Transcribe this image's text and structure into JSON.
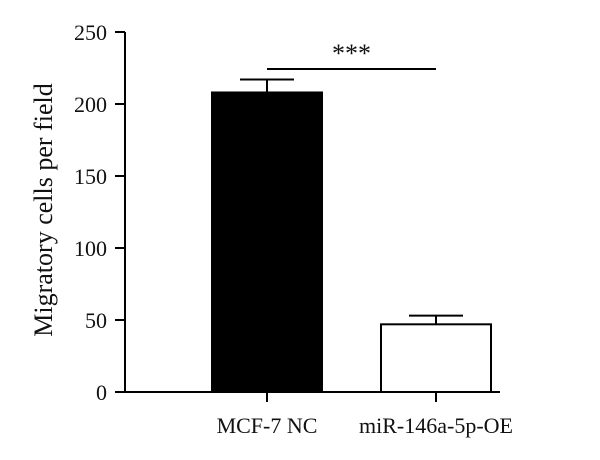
{
  "chart_data": {
    "type": "bar",
    "ylabel": "Migratory cells per field",
    "ylim": [
      0,
      250
    ],
    "yticks": [
      0,
      50,
      100,
      150,
      200,
      250
    ],
    "categories": [
      "MCF-7 NC",
      "miR-146a-5p-OE"
    ],
    "values": [
      208,
      47
    ],
    "errors": [
      9,
      6
    ],
    "bar_fill": [
      "#000000",
      "#ffffff"
    ],
    "bar_stroke": "#000000",
    "significance": {
      "label": "***",
      "between": [
        0,
        1
      ]
    },
    "grid": false,
    "legend": "none"
  }
}
